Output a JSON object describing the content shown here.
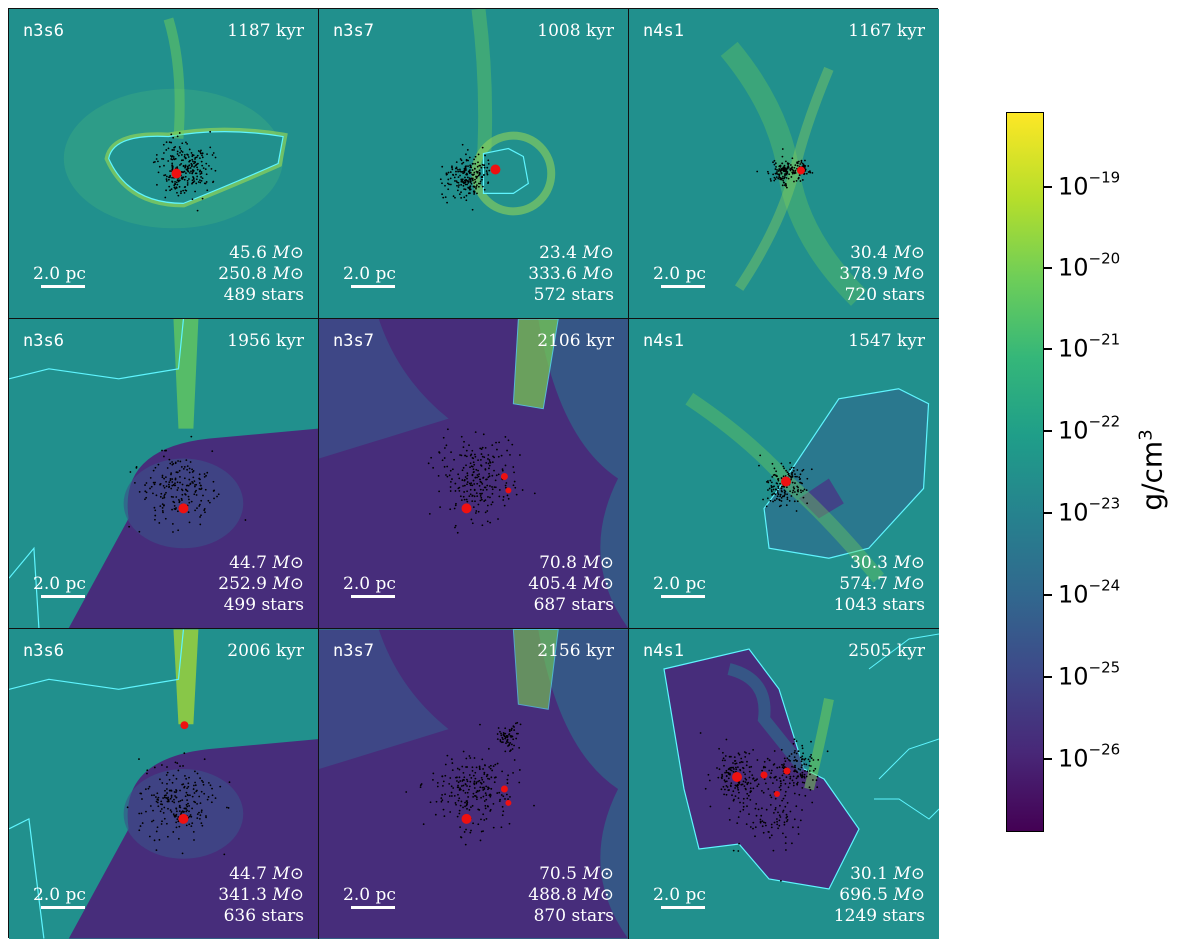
{
  "figure": {
    "colorbar": {
      "label": "g/cm",
      "label_exponent": "3",
      "ticks": [
        {
          "base": "10",
          "exp": "−19"
        },
        {
          "base": "10",
          "exp": "−20"
        },
        {
          "base": "10",
          "exp": "−21"
        },
        {
          "base": "10",
          "exp": "−22"
        },
        {
          "base": "10",
          "exp": "−23"
        },
        {
          "base": "10",
          "exp": "−24"
        },
        {
          "base": "10",
          "exp": "−25"
        },
        {
          "base": "10",
          "exp": "−26"
        }
      ],
      "colors": {
        "low": "#440154",
        "mid": "#21908d",
        "high": "#fde725"
      }
    },
    "scale_label": "2.0 pc",
    "mass_unit": "M⊙",
    "panels": [
      {
        "name": "n3s6",
        "time": "1187 kyr",
        "mass1": "45.6",
        "mass2": "250.8",
        "stars": "489 stars"
      },
      {
        "name": "n3s7",
        "time": "1008 kyr",
        "mass1": "23.4",
        "mass2": "333.6",
        "stars": "572 stars"
      },
      {
        "name": "n4s1",
        "time": "1167 kyr",
        "mass1": "30.4",
        "mass2": "378.9",
        "stars": "720 stars"
      },
      {
        "name": "n3s6",
        "time": "1956 kyr",
        "mass1": "44.7",
        "mass2": "252.9",
        "stars": "499 stars"
      },
      {
        "name": "n3s7",
        "time": "2106 kyr",
        "mass1": "70.8",
        "mass2": "405.4",
        "stars": "687 stars"
      },
      {
        "name": "n4s1",
        "time": "1547 kyr",
        "mass1": "30.3",
        "mass2": "574.7",
        "stars": "1043 stars"
      },
      {
        "name": "n3s6",
        "time": "2006 kyr",
        "mass1": "44.7",
        "mass2": "341.3",
        "stars": "636 stars"
      },
      {
        "name": "n3s7",
        "time": "2156 kyr",
        "mass1": "70.5",
        "mass2": "488.8",
        "stars": "870 stars"
      },
      {
        "name": "n4s1",
        "time": "2505 kyr",
        "mass1": "30.1",
        "mass2": "696.5",
        "stars": "1249 stars"
      }
    ]
  }
}
